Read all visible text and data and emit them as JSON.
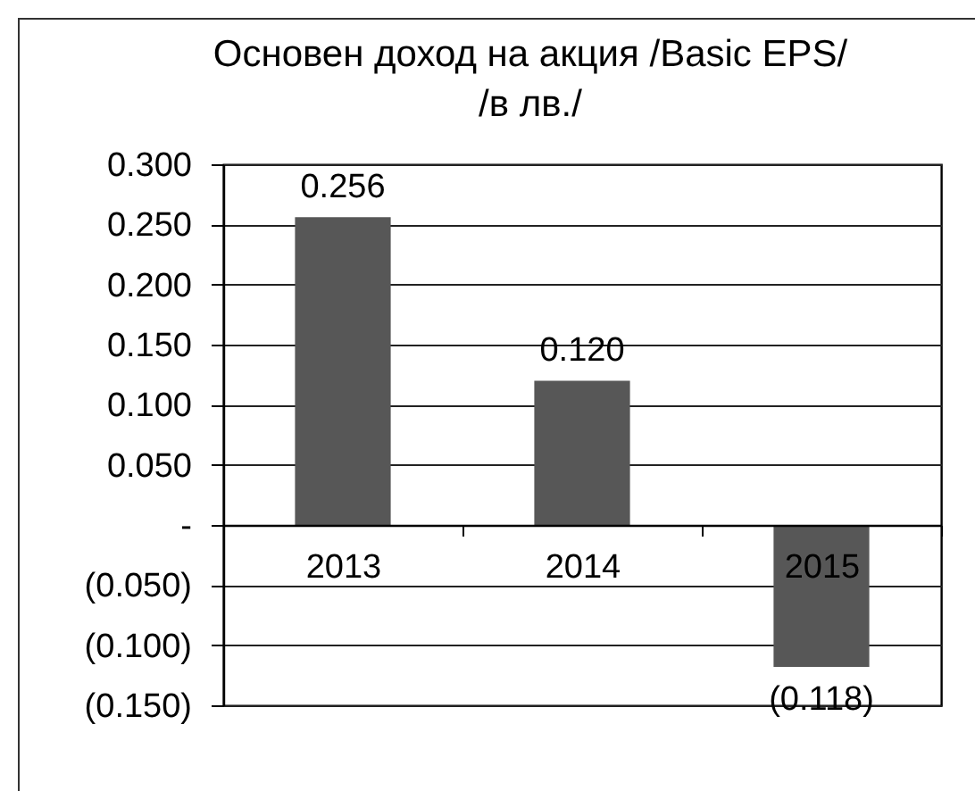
{
  "chart_data": {
    "type": "bar",
    "title": "Основен доход на акция /Basic EPS/\n/в лв./",
    "categories": [
      "2013",
      "2014",
      "2015"
    ],
    "values": [
      0.256,
      0.12,
      -0.118
    ],
    "value_labels": [
      "0.256",
      "0.120",
      "(0.118)"
    ],
    "color": "#575757",
    "ylim": [
      -0.15,
      0.3
    ],
    "yticks": [
      {
        "value": -0.15,
        "label": "(0.150)"
      },
      {
        "value": -0.1,
        "label": "(0.100)"
      },
      {
        "value": -0.05,
        "label": "(0.050)"
      },
      {
        "value": 0,
        "label": "-"
      },
      {
        "value": 0.05,
        "label": "0.050"
      },
      {
        "value": 0.1,
        "label": "0.100"
      },
      {
        "value": 0.15,
        "label": "0.150"
      },
      {
        "value": 0.2,
        "label": "0.200"
      },
      {
        "value": 0.25,
        "label": "0.250"
      },
      {
        "value": 0.3,
        "label": "0.300"
      }
    ],
    "grid": "y"
  }
}
